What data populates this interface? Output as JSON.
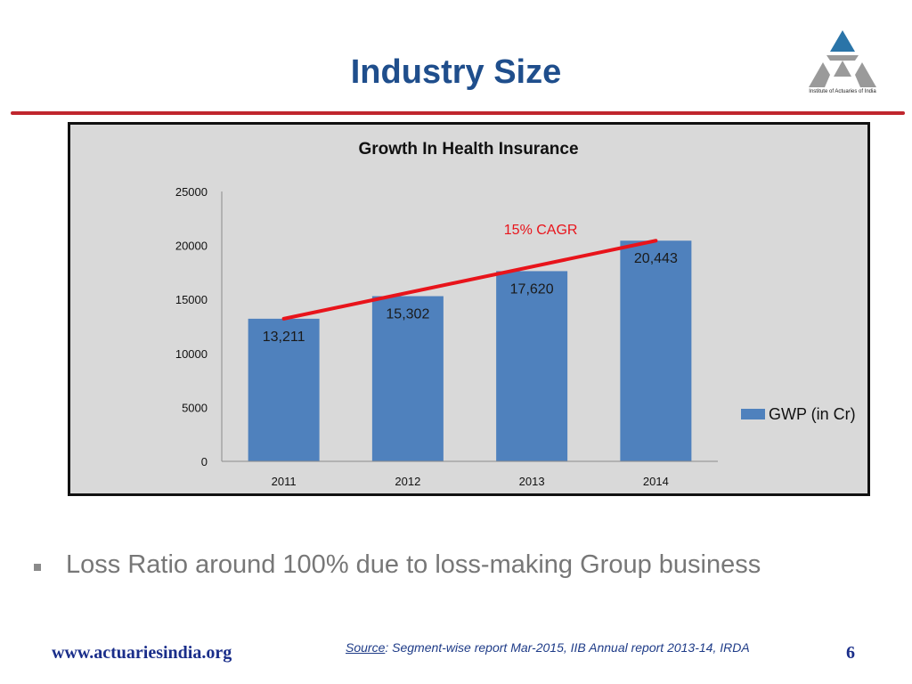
{
  "slide": {
    "title": "Industry Size",
    "logo_caption": "Institute of Actuaries of India",
    "bullet": "Loss Ratio around 100% due to loss-making Group business",
    "footer_url": "www.actuariesindia.org",
    "source_label": "Source",
    "source_text": ": Segment-wise report Mar-2015, IIB   Annual report 2013-14, IRDA",
    "page_number": "6"
  },
  "colors": {
    "title": "#1f4e8c",
    "rule": "#c0262d",
    "bar": "#4f81bd",
    "trend": "#e8141b",
    "chart_bg": "#d9d9d9",
    "logo_blue": "#2a74a8",
    "logo_grey": "#9a9a9a"
  },
  "chart_data": {
    "type": "bar",
    "title": "Growth In Health Insurance",
    "categories": [
      "2011",
      "2012",
      "2013",
      "2014"
    ],
    "series": [
      {
        "name": "GWP (in Cr)",
        "values": [
          13211,
          15302,
          17620,
          20443
        ],
        "value_labels": [
          "13,211",
          "15,302",
          "17,620",
          "20,443"
        ]
      }
    ],
    "ylim": [
      0,
      25000
    ],
    "yticks": [
      "0",
      "5000",
      "10000",
      "15000",
      "20000",
      "25000"
    ],
    "xlabel": "",
    "ylabel": "",
    "grid": false,
    "legend": "right",
    "annotations": [
      {
        "text": "15% CAGR",
        "type": "trend-line",
        "from_category": "2011",
        "to_category": "2014",
        "from_value": 13211,
        "to_value": 20443
      }
    ]
  }
}
